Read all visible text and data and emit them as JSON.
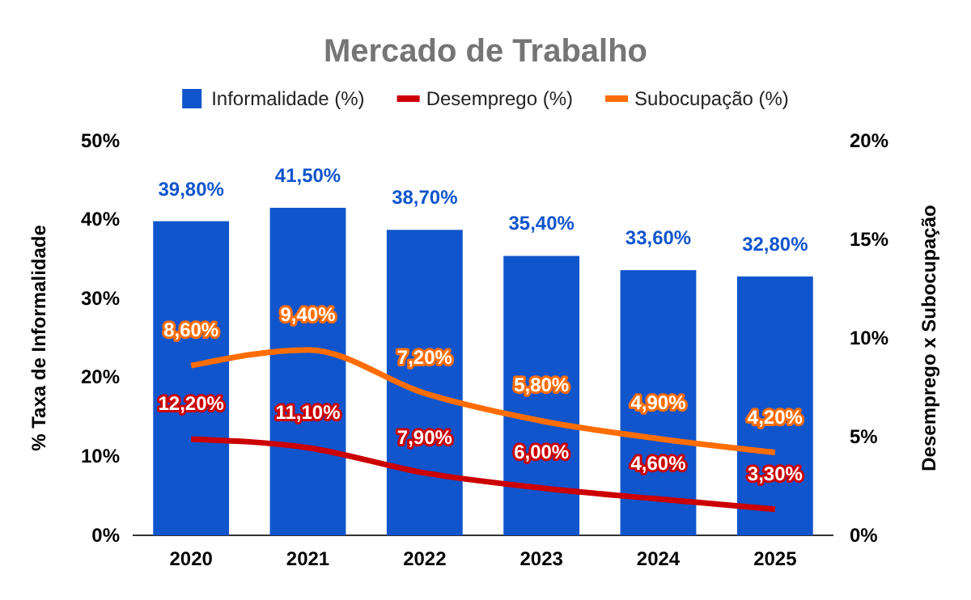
{
  "chart_data": {
    "type": "bar",
    "title": "Mercado de Trabalho",
    "ylabel": "% Taxa de Informalidade",
    "y2label": "Desemprego x Subocupação",
    "categories": [
      "2020",
      "2021",
      "2022",
      "2023",
      "2024",
      "2025"
    ],
    "series": [
      {
        "name": "Informalidade (%)",
        "color": "#1155cc",
        "values": [
          39.8,
          41.5,
          38.7,
          35.4,
          33.6,
          32.8
        ],
        "value_labels": [
          "39,80%",
          "41,50%",
          "38,70%",
          "35,40%",
          "33,60%",
          "32,80%"
        ]
      },
      {
        "name": "Desemprego (%)",
        "type": "line",
        "color": "#cc0000",
        "values": [
          12.2,
          11.1,
          7.9,
          6.0,
          4.6,
          3.3
        ],
        "value_labels": [
          "12,20%",
          "11,10%",
          "7,90%",
          "6,00%",
          "4,60%",
          "3,30%"
        ]
      },
      {
        "name": "Subocupação (%)",
        "type": "line",
        "axis": "y2",
        "color": "#ff6d01",
        "values": [
          8.6,
          9.4,
          7.2,
          5.8,
          4.9,
          4.2
        ],
        "value_labels": [
          "8,60%",
          "9,40%",
          "7,20%",
          "5,80%",
          "4,90%",
          "4,20%"
        ]
      }
    ],
    "ylim": [
      0,
      50
    ],
    "yticks": [
      {
        "value": 0,
        "label": "0%"
      },
      {
        "value": 10,
        "label": "10%"
      },
      {
        "value": 20,
        "label": "20%"
      },
      {
        "value": 30,
        "label": "30%"
      },
      {
        "value": 40,
        "label": "40%"
      },
      {
        "value": 50,
        "label": "50%"
      }
    ],
    "y2lim": [
      0,
      20
    ],
    "y2ticks": [
      {
        "value": 0,
        "label": "0%"
      },
      {
        "value": 5,
        "label": "5%"
      },
      {
        "value": 10,
        "label": "10%"
      },
      {
        "value": 15,
        "label": "15%"
      },
      {
        "value": 20,
        "label": "20%"
      }
    ],
    "legend": "top",
    "grid": false,
    "marker": "none",
    "line_style": "solid"
  }
}
